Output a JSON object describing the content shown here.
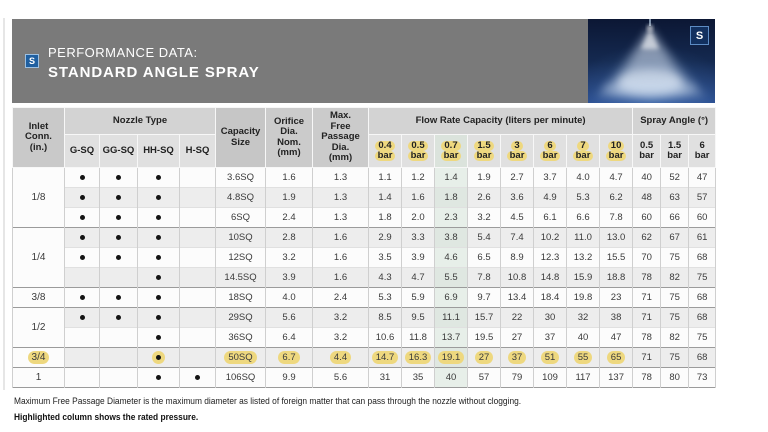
{
  "header": {
    "logo_letter": "S",
    "line1": "PERFORMANCE DATA:",
    "line2": "STANDARD ANGLE SPRAY"
  },
  "table": {
    "headers": {
      "inlet": "Inlet\nConn.\n(in.)",
      "nozzle_type": "Nozzle Type",
      "nozzle_cols": [
        "G-SQ",
        "GG-SQ",
        "HH-SQ",
        "H-SQ"
      ],
      "capacity": "Capacity\nSize",
      "orifice": "Orifice\nDia.\nNom.\n(mm)",
      "max_free": "Max.\nFree\nPassage\nDia.\n(mm)",
      "flow_rate": "Flow Rate Capacity (liters per minute)",
      "flow_bars": [
        "0.4",
        "0.5",
        "0.7",
        "1.5",
        "3",
        "6",
        "7",
        "10"
      ],
      "spray_angle": "Spray Angle (°)",
      "spray_bars": [
        "0.5",
        "1.5",
        "6"
      ],
      "bar_unit": "bar"
    },
    "rows": [
      {
        "inlet": "1/8",
        "span": 3,
        "group": true,
        "dots": [
          1,
          1,
          1,
          0
        ],
        "size": "3.6SQ",
        "orifice": "1.6",
        "max_free": "1.3",
        "flow": [
          "1.1",
          "1.2",
          "1.4",
          "1.9",
          "2.7",
          "3.7",
          "4.0",
          "4.7"
        ],
        "angles": [
          "40",
          "52",
          "47"
        ]
      },
      {
        "dots": [
          1,
          1,
          1,
          0
        ],
        "size": "4.8SQ",
        "orifice": "1.9",
        "max_free": "1.3",
        "flow": [
          "1.4",
          "1.6",
          "1.8",
          "2.6",
          "3.6",
          "4.9",
          "5.3",
          "6.2"
        ],
        "angles": [
          "48",
          "63",
          "57"
        ]
      },
      {
        "dots": [
          1,
          1,
          1,
          0
        ],
        "size": "6SQ",
        "orifice": "2.4",
        "max_free": "1.3",
        "flow": [
          "1.8",
          "2.0",
          "2.3",
          "3.2",
          "4.5",
          "6.1",
          "6.6",
          "7.8"
        ],
        "angles": [
          "60",
          "66",
          "60"
        ]
      },
      {
        "inlet": "1/4",
        "span": 3,
        "group": true,
        "dots": [
          1,
          1,
          1,
          0
        ],
        "size": "10SQ",
        "orifice": "2.8",
        "max_free": "1.6",
        "flow": [
          "2.9",
          "3.3",
          "3.8",
          "5.4",
          "7.4",
          "10.2",
          "11.0",
          "13.0"
        ],
        "angles": [
          "62",
          "67",
          "61"
        ]
      },
      {
        "dots": [
          1,
          1,
          1,
          0
        ],
        "size": "12SQ",
        "orifice": "3.2",
        "max_free": "1.6",
        "flow": [
          "3.5",
          "3.9",
          "4.6",
          "6.5",
          "8.9",
          "12.3",
          "13.2",
          "15.5"
        ],
        "angles": [
          "70",
          "75",
          "68"
        ]
      },
      {
        "dots": [
          0,
          0,
          1,
          0
        ],
        "size": "14.5SQ",
        "orifice": "3.9",
        "max_free": "1.6",
        "flow": [
          "4.3",
          "4.7",
          "5.5",
          "7.8",
          "10.8",
          "14.8",
          "15.9",
          "18.8"
        ],
        "angles": [
          "78",
          "82",
          "75"
        ]
      },
      {
        "inlet": "3/8",
        "span": 1,
        "group": true,
        "dots": [
          1,
          1,
          1,
          0
        ],
        "size": "18SQ",
        "orifice": "4.0",
        "max_free": "2.4",
        "flow": [
          "5.3",
          "5.9",
          "6.9",
          "9.7",
          "13.4",
          "18.4",
          "19.8",
          "23"
        ],
        "angles": [
          "71",
          "75",
          "68"
        ]
      },
      {
        "inlet": "1/2",
        "span": 2,
        "group": true,
        "dots": [
          1,
          1,
          1,
          0
        ],
        "size": "29SQ",
        "orifice": "5.6",
        "max_free": "3.2",
        "flow": [
          "8.5",
          "9.5",
          "11.1",
          "15.7",
          "22",
          "30",
          "32",
          "38"
        ],
        "angles": [
          "71",
          "75",
          "68"
        ]
      },
      {
        "dots": [
          0,
          0,
          1,
          0
        ],
        "size": "36SQ",
        "orifice": "6.4",
        "max_free": "3.2",
        "flow": [
          "10.6",
          "11.8",
          "13.7",
          "19.5",
          "27",
          "37",
          "40",
          "47"
        ],
        "angles": [
          "78",
          "82",
          "75"
        ]
      },
      {
        "inlet": "3/4",
        "span": 1,
        "group": true,
        "highlight": true,
        "dots": [
          0,
          0,
          1,
          0
        ],
        "size": "50SQ",
        "orifice": "6.7",
        "max_free": "4.4",
        "flow": [
          "14.7",
          "16.3",
          "19.1",
          "27",
          "37",
          "51",
          "55",
          "65"
        ],
        "angles": [
          "71",
          "75",
          "68"
        ]
      },
      {
        "inlet": "1",
        "span": 1,
        "group": true,
        "dots": [
          0,
          0,
          1,
          1
        ],
        "size": "106SQ",
        "orifice": "9.9",
        "max_free": "5.6",
        "flow": [
          "31",
          "35",
          "40",
          "57",
          "79",
          "109",
          "117",
          "137"
        ],
        "angles": [
          "78",
          "80",
          "73"
        ]
      }
    ]
  },
  "footnotes": {
    "line1": "Maximum Free Passage Diameter is the maximum diameter as listed of foreign matter that can pass through the nozzle without clogging.",
    "line2": "Highlighted column shows the rated pressure."
  },
  "colors": {
    "accent_yellow": "#eed87f",
    "rated_tint": "#e7efe9",
    "logo_blue": "#1f5fa0",
    "header_gray": "#7a7a7a"
  }
}
